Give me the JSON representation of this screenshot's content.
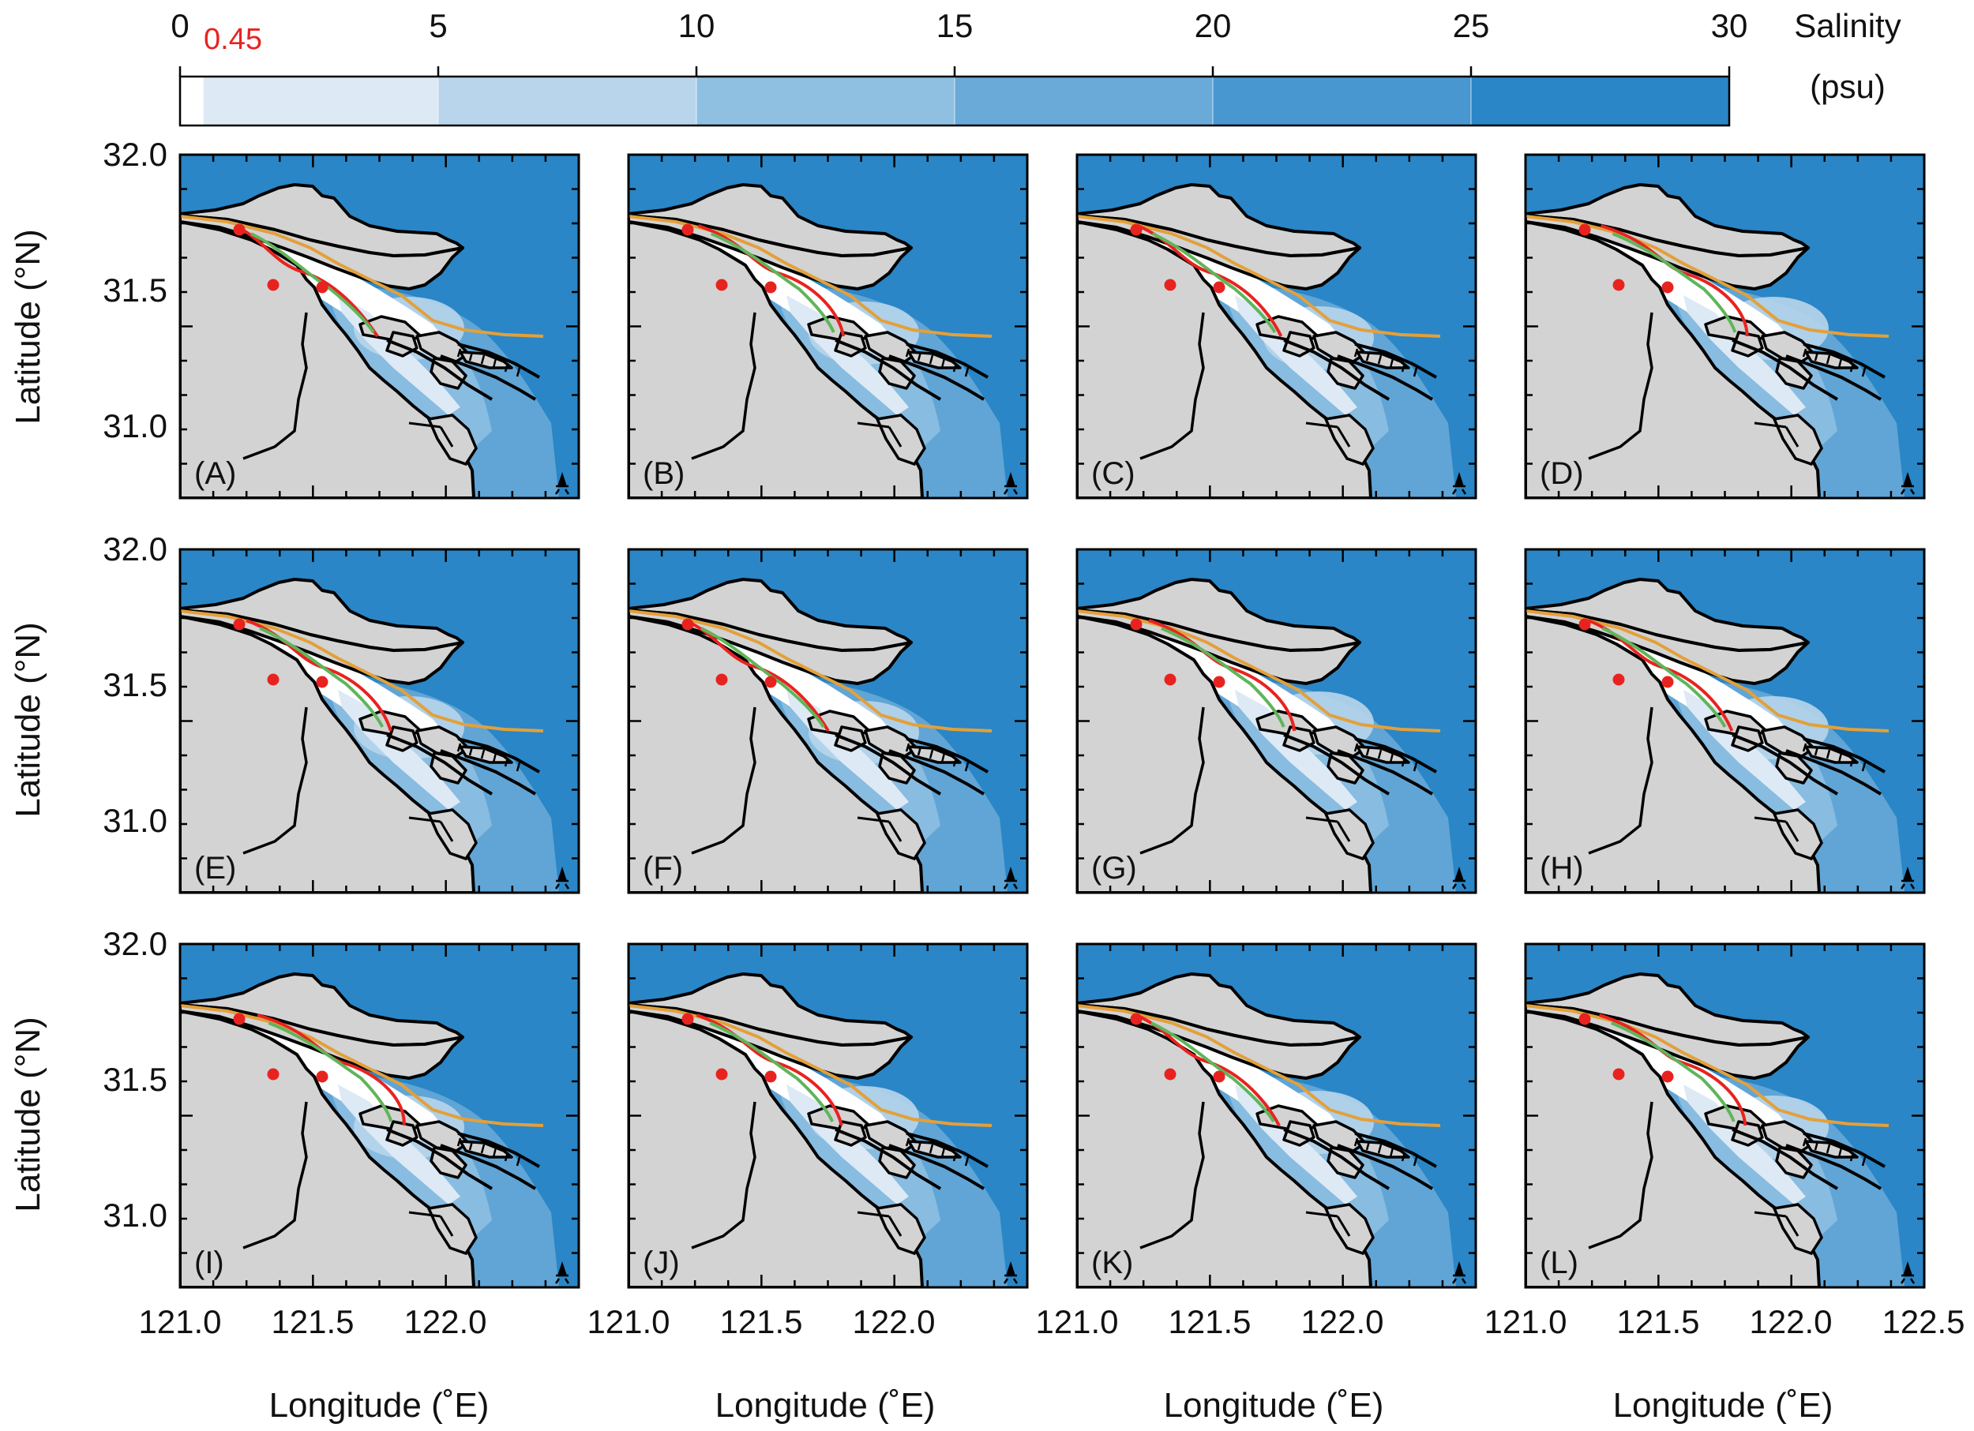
{
  "colorbar": {
    "ticks": [
      "0",
      "5",
      "10",
      "15",
      "20",
      "25",
      "30"
    ],
    "threshold_label": "0.45",
    "threshold_color": "#e8231f",
    "title_line1": "Salinity",
    "title_line2": "(psu)",
    "colors": [
      "#ffffff",
      "#dde9f4",
      "#b8d5eb",
      "#8fc0e2",
      "#6aaad8",
      "#4897d0",
      "#2a86c6"
    ]
  },
  "axes": {
    "ylabel": "Latitude (°N)",
    "xlabel": "Longitude (˚E)",
    "y_ticks": [
      "32.0",
      "31.5",
      "31.0"
    ],
    "x_ticks_first3": [
      "121.0",
      "121.5",
      "122.0"
    ],
    "x_ticks_last": [
      "121.0",
      "121.5",
      "122.0",
      "122.5"
    ]
  },
  "panel_labels": [
    "(A)",
    "(B)",
    "(C)",
    "(D)",
    "(E)",
    "(F)",
    "(G)",
    "(H)",
    "(I)",
    "(J)",
    "(K)",
    "(L)"
  ],
  "colors": {
    "land": "#d3d3d3",
    "sea": "#2a86c6",
    "isohaline_red": "#e8231f",
    "isohaline_green": "#5fb55a",
    "channel_orange": "#e3a03a",
    "station": "#e8231f"
  },
  "chart_data": {
    "type": "heatmap",
    "title": "",
    "variable": "Salinity (psu)",
    "colorbar_range": [
      0,
      30
    ],
    "colorbar_levels": [
      0,
      0.45,
      5,
      10,
      15,
      20,
      25,
      30
    ],
    "highlighted_contour": 0.45,
    "xlabel": "Longitude (˚E)",
    "ylabel": "Latitude (°N)",
    "xlim": [
      121.0,
      122.55
    ],
    "ylim": [
      30.7,
      32.0
    ],
    "layout": "3 rows x 4 columns",
    "panels": [
      "(A)",
      "(B)",
      "(C)",
      "(D)",
      "(E)",
      "(F)",
      "(G)",
      "(H)",
      "(I)",
      "(J)",
      "(K)",
      "(L)"
    ],
    "grid": false,
    "legend": "colorbar top"
  }
}
